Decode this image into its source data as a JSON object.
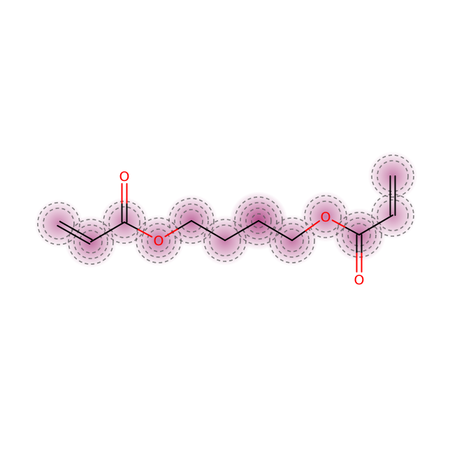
{
  "molecule": {
    "atoms": [
      {
        "id": "c1",
        "element": "C",
        "label": ""
      },
      {
        "id": "c2",
        "element": "C",
        "label": ""
      },
      {
        "id": "c3",
        "element": "C",
        "label": ""
      },
      {
        "id": "o1",
        "element": "O",
        "label": "O"
      },
      {
        "id": "o2",
        "element": "O",
        "label": "O"
      },
      {
        "id": "c4",
        "element": "C",
        "label": ""
      },
      {
        "id": "c5",
        "element": "C",
        "label": ""
      },
      {
        "id": "c6",
        "element": "C",
        "label": ""
      },
      {
        "id": "c7",
        "element": "C",
        "label": ""
      },
      {
        "id": "o3",
        "element": "O",
        "label": "O"
      },
      {
        "id": "c8",
        "element": "C",
        "label": ""
      },
      {
        "id": "o4",
        "element": "O",
        "label": "O"
      },
      {
        "id": "c9",
        "element": "C",
        "label": ""
      },
      {
        "id": "c10",
        "element": "C",
        "label": ""
      }
    ],
    "bonds": [
      {
        "a": "c1",
        "b": "c2",
        "order": 2
      },
      {
        "a": "c2",
        "b": "c3",
        "order": 1
      },
      {
        "a": "c3",
        "b": "o1",
        "order": 2
      },
      {
        "a": "c3",
        "b": "o2",
        "order": 1
      },
      {
        "a": "o2",
        "b": "c4",
        "order": 1
      },
      {
        "a": "c4",
        "b": "c5",
        "order": 1
      },
      {
        "a": "c5",
        "b": "c6",
        "order": 1
      },
      {
        "a": "c6",
        "b": "c7",
        "order": 1
      },
      {
        "a": "c7",
        "b": "o3",
        "order": 1
      },
      {
        "a": "o3",
        "b": "c8",
        "order": 1
      },
      {
        "a": "c8",
        "b": "o4",
        "order": 2
      },
      {
        "a": "c8",
        "b": "c9",
        "order": 1
      },
      {
        "a": "c9",
        "b": "c10",
        "order": 2
      }
    ]
  },
  "colors": {
    "carbon": "#000000",
    "oxygen": "#ff0000",
    "highlight": "#9b1466",
    "contour": "#555555",
    "background": "#ffffff"
  }
}
